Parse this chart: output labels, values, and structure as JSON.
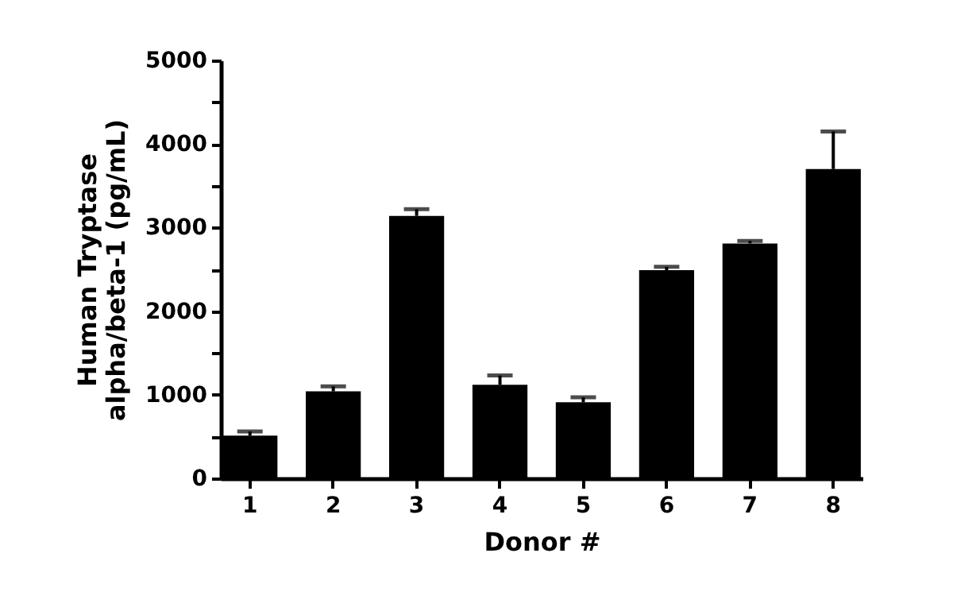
{
  "chart_data": {
    "type": "bar",
    "xlabel": "Donor #",
    "ylabel": "Human Tryptase alpha/beta-1 (pg/mL)",
    "categories": [
      "1",
      "2",
      "3",
      "4",
      "5",
      "6",
      "7",
      "8"
    ],
    "values": [
      510,
      1040,
      3140,
      1120,
      910,
      2490,
      2810,
      3700
    ],
    "errors": [
      [
        510,
        560
      ],
      [
        1040,
        1100
      ],
      [
        3140,
        3220
      ],
      [
        1120,
        1230
      ],
      [
        910,
        970
      ],
      [
        2490,
        2530
      ],
      [
        2810,
        2840
      ],
      [
        3700,
        4150
      ]
    ],
    "color": "#000000",
    "ylim": [
      0,
      5000
    ],
    "yticks": [
      0,
      {
        "value": 500,
        "label": null
      },
      1000,
      {
        "value": 1500,
        "label": null
      },
      2000,
      {
        "value": 2500,
        "label": null
      },
      3000,
      {
        "value": 3500,
        "label": null
      },
      4000,
      {
        "value": 4500,
        "label": null
      },
      5000
    ],
    "grid": false
  }
}
